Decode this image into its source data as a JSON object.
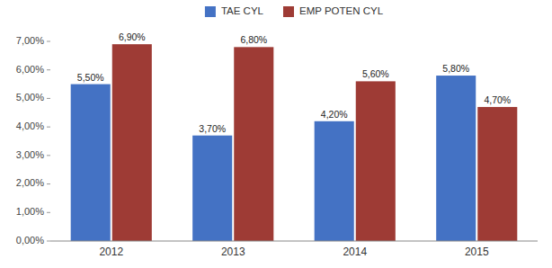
{
  "chart_data": {
    "type": "bar",
    "categories": [
      "2012",
      "2013",
      "2014",
      "2015"
    ],
    "series": [
      {
        "name": "TAE CYL",
        "color": "#4472C4",
        "values": [
          5.5,
          3.7,
          4.2,
          5.8
        ],
        "value_labels": [
          "5,50%",
          "3,70%",
          "4,20%",
          "5,80%"
        ]
      },
      {
        "name": "EMP POTEN CYL",
        "color": "#9E3B35",
        "values": [
          6.9,
          6.8,
          5.6,
          4.7
        ],
        "value_labels": [
          "6,90%",
          "6,80%",
          "5,60%",
          "4,70%"
        ]
      }
    ],
    "ylim": [
      0,
      7.0
    ],
    "yticks": [
      {
        "value": 0.0,
        "label": "0,00%"
      },
      {
        "value": 1.0,
        "label": "1,00%"
      },
      {
        "value": 2.0,
        "label": "2,00%"
      },
      {
        "value": 3.0,
        "label": "3,00%"
      },
      {
        "value": 4.0,
        "label": "4,00%"
      },
      {
        "value": 5.0,
        "label": "5,00%"
      },
      {
        "value": 6.0,
        "label": "6,00%"
      },
      {
        "value": 7.0,
        "label": "7,00%"
      }
    ],
    "grid": false,
    "legend": "top",
    "data_labels": true
  }
}
